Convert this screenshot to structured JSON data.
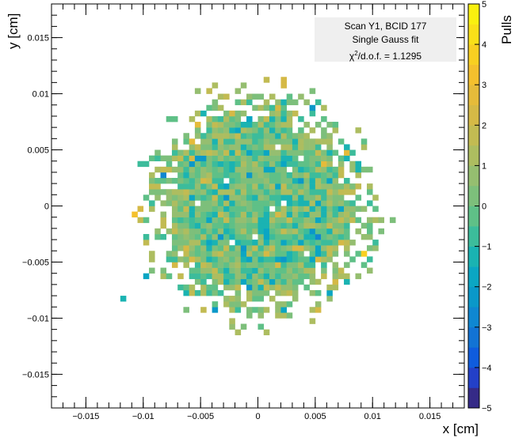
{
  "chart_data": {
    "type": "heatmap",
    "xlabel": "x [cm]",
    "ylabel": "y [cm]",
    "zlabel": "Pulls",
    "xlim": [
      -0.018,
      0.018
    ],
    "ylim": [
      -0.018,
      0.018
    ],
    "zlim": [
      -5,
      5
    ],
    "x_ticks": [
      "−0.015",
      "−0.01",
      "−0.005",
      "0",
      "0.005",
      "0.01",
      "0.015"
    ],
    "x_tick_values": [
      -0.015,
      -0.01,
      -0.005,
      0,
      0.005,
      0.01,
      0.015
    ],
    "y_ticks": [
      "−0.015",
      "−0.01",
      "−0.005",
      "0",
      "0.005",
      "0.01",
      "0.015"
    ],
    "y_tick_values": [
      -0.015,
      -0.01,
      -0.005,
      0,
      0.005,
      0.01,
      0.015
    ],
    "z_ticks": [
      "−5",
      "−4",
      "−3",
      "−2",
      "−1",
      "0",
      "1",
      "2",
      "3",
      "4",
      "5"
    ],
    "z_tick_values": [
      -5,
      -4,
      -3,
      -2,
      -1,
      0,
      1,
      2,
      3,
      4,
      5
    ],
    "legend": {
      "line1": "Scan Y1, BCID 177",
      "line2": "Single Gauss fit",
      "chi_prefix": "χ",
      "chi_sup": "2",
      "chi_suffix": "/d.o.f. = 1.1295"
    },
    "distribution": {
      "shape": "2D gaussian pulls",
      "center": [
        0.0,
        0.0
      ],
      "core_radius": 0.0075,
      "outer_radius": 0.0115,
      "bin_width": 0.0005
    },
    "palette": [
      "#352a87",
      "#2340c8",
      "#0f5cdd",
      "#1273d4",
      "#0f87d1",
      "#0a98c9",
      "#0ba6c3",
      "#1ab3b2",
      "#3cbc9b",
      "#5fc087",
      "#7dbf7b",
      "#95be70",
      "#adbd60",
      "#c2bb52",
      "#d5b946",
      "#e5bb3a",
      "#f4c02d",
      "#f8cf21",
      "#f9e018",
      "#f9f00f"
    ]
  }
}
